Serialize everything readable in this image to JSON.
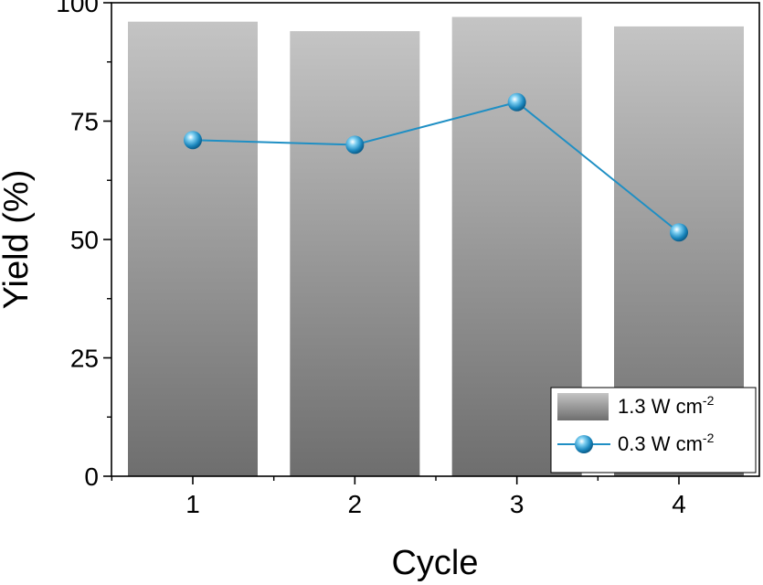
{
  "chart_data": {
    "type": "bar",
    "categories": [
      "1",
      "2",
      "3",
      "4"
    ],
    "series": [
      {
        "name": "1.3 W cm",
        "superscript": "-2",
        "type": "bar",
        "values": [
          96,
          94,
          97,
          95
        ],
        "color": "#8a8a8a"
      },
      {
        "name": "0.3 W cm",
        "superscript": "-2",
        "type": "line",
        "values": [
          71,
          70,
          79,
          51.5
        ],
        "color": "#1f8fc4"
      }
    ],
    "xlabel": "Cycle",
    "ylabel": "Yield (%)",
    "ylim": [
      0,
      100
    ],
    "yticks": [
      0,
      25,
      50,
      75,
      100
    ],
    "grid": false,
    "legend_position": "bottom-right"
  }
}
